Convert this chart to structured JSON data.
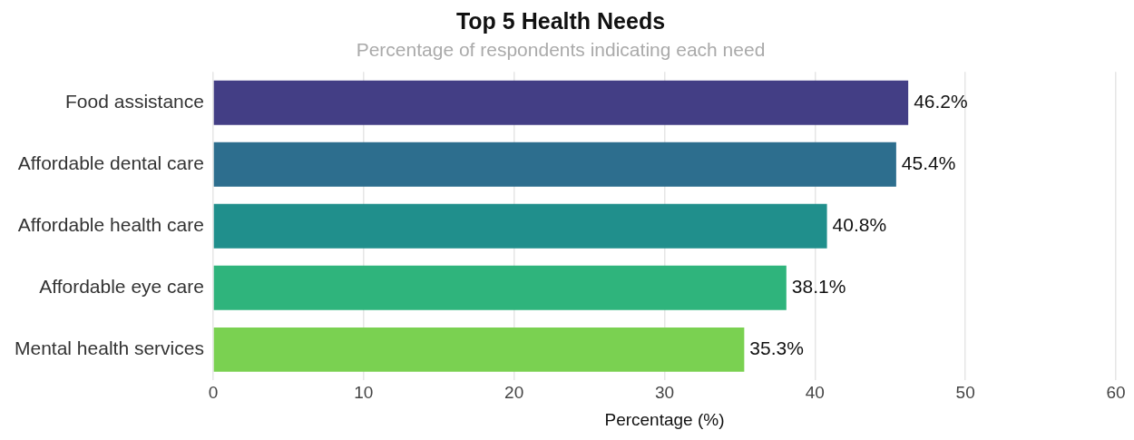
{
  "chart_data": {
    "type": "bar",
    "orientation": "horizontal",
    "title": "Top 5 Health Needs",
    "subtitle": "Percentage of respondents indicating each need",
    "xlabel": "Percentage (%)",
    "categories": [
      "Food assistance",
      "Affordable dental care",
      "Affordable health care",
      "Affordable eye care",
      "Mental health services"
    ],
    "values": [
      46.2,
      45.4,
      40.8,
      38.1,
      35.3
    ],
    "colors": [
      "#433e85",
      "#2d6e8e",
      "#208f8c",
      "#2fb47c",
      "#7ad151"
    ],
    "value_labels": [
      "46.2%",
      "45.4%",
      "40.8%",
      "38.1%",
      "35.3%"
    ],
    "xlim": [
      0,
      60
    ],
    "xticks": [
      0,
      10,
      20,
      30,
      40,
      50,
      60
    ],
    "grid": "x",
    "legend": false
  }
}
